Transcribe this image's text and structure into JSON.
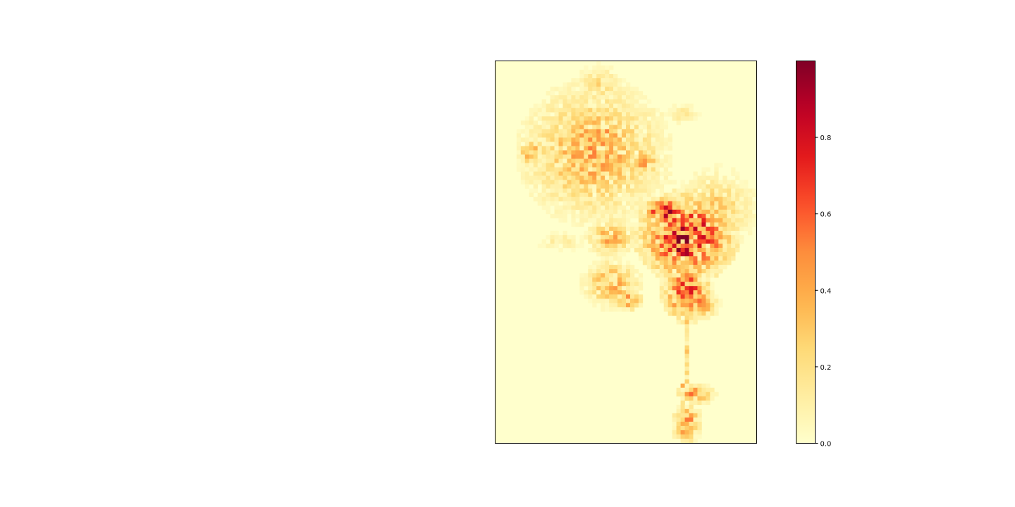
{
  "chart_data": {
    "type": "heatmap",
    "title": "",
    "xlabel": "",
    "ylabel": "",
    "colormap": "YlOrRd",
    "value_range": [
      0.0,
      1.0
    ],
    "grid": false,
    "axes_ticks_visible": false,
    "colorbar": {
      "placement": "right",
      "ticks": [
        0.0,
        0.2,
        0.4,
        0.6,
        0.8
      ],
      "tick_labels": [
        "0.0",
        "0.2",
        "0.4",
        "0.6",
        "0.8"
      ]
    },
    "grid_size": {
      "cols": 62,
      "rows": 90
    },
    "regions": [
      {
        "name": "northwest cluster",
        "col": 23,
        "row": 21,
        "rcol": 15,
        "rrow": 14,
        "peak": 0.45
      },
      {
        "name": "northwest hotspot a",
        "col": 25,
        "row": 16,
        "rcol": 3,
        "rrow": 3,
        "peak": 0.55
      },
      {
        "name": "northwest hotspot b",
        "col": 35,
        "row": 23,
        "rcol": 3,
        "rrow": 4,
        "peak": 0.5
      },
      {
        "name": "northwest hotspot c",
        "col": 8,
        "row": 21,
        "rcol": 3,
        "rrow": 3,
        "peak": 0.45
      },
      {
        "name": "northwest top",
        "col": 24,
        "row": 5,
        "rcol": 5,
        "rrow": 4,
        "peak": 0.25
      },
      {
        "name": "north-east fringe",
        "col": 44,
        "row": 12,
        "rcol": 4,
        "rrow": 2,
        "peak": 0.2
      },
      {
        "name": "central core",
        "col": 45,
        "row": 41,
        "rcol": 10,
        "rrow": 9,
        "peak": 0.95
      },
      {
        "name": "central north",
        "col": 40,
        "row": 35,
        "rcol": 5,
        "rrow": 3,
        "peak": 0.9
      },
      {
        "name": "eastern spread",
        "col": 52,
        "row": 34,
        "rcol": 8,
        "rrow": 8,
        "peak": 0.3
      },
      {
        "name": "western lobe",
        "col": 27,
        "row": 41,
        "rcol": 5,
        "rrow": 4,
        "peak": 0.45
      },
      {
        "name": "southwest lobe",
        "col": 27,
        "row": 52,
        "rcol": 6,
        "rrow": 5,
        "peak": 0.45
      },
      {
        "name": "southwest tip",
        "col": 31,
        "row": 56,
        "rcol": 3,
        "rrow": 2,
        "peak": 0.7
      },
      {
        "name": "southern core",
        "col": 45,
        "row": 54,
        "rcol": 5,
        "rrow": 6,
        "peak": 0.85
      },
      {
        "name": "southern block",
        "col": 47,
        "row": 57,
        "rcol": 5,
        "rrow": 3,
        "peak": 0.55
      },
      {
        "name": "far west fringe",
        "col": 15,
        "row": 42,
        "rcol": 5,
        "rrow": 2,
        "peak": 0.15
      },
      {
        "name": "band north",
        "col": 30,
        "row": 28,
        "rcol": 12,
        "rrow": 2,
        "peak": 0.15
      },
      {
        "name": "south town a",
        "col": 47,
        "row": 78,
        "rcol": 4,
        "rrow": 2,
        "peak": 0.55
      },
      {
        "name": "south town b",
        "col": 45,
        "row": 85,
        "rcol": 3,
        "rrow": 4,
        "peak": 0.6
      }
    ],
    "corridor": {
      "from_row": 58,
      "to_row": 84,
      "col_start": 45.5,
      "col_end": 44,
      "peak": 0.35
    }
  }
}
